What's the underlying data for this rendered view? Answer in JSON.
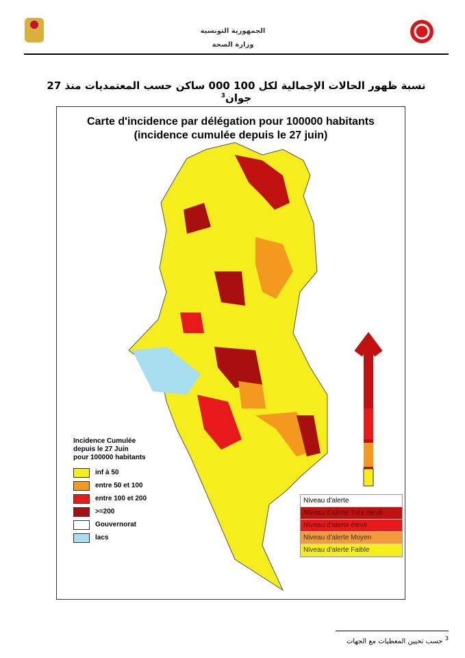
{
  "header": {
    "country": "الجمهورية التونسية",
    "ministry": "وزارة الصحة"
  },
  "title": {
    "text": "نسبة ظهور الحالات الإجمالية لكل 100 000 ساكن حسب المعتمديات منذ 27 جوان",
    "note": "3"
  },
  "map": {
    "title": [
      "Carte d'incidence par délégation pour 100000 habitants",
      "(incidence cumulée depuis le 27 juin)"
    ],
    "legend": {
      "title": [
        "Incidence Cumulée",
        "depuis le 27 Juin",
        "pour 100000 habitants"
      ],
      "items": [
        {
          "label": "inf à 50",
          "color": "#f5ee1c"
        },
        {
          "label": "entre 50 et 100",
          "color": "#f39a1e"
        },
        {
          "label": "entre 100 et 200",
          "color": "#e8191b"
        },
        {
          "label": ">=200",
          "color": "#a8100f"
        },
        {
          "label": "Gouvernorat",
          "color": "#ffffff"
        },
        {
          "label": "lacs",
          "color": "#a8dcef"
        }
      ]
    },
    "alert_scale": {
      "title": "Niveau d'alerte",
      "levels": [
        {
          "label": "Niveau d'alerte Très élevé",
          "color": "#c0100f"
        },
        {
          "label": "Niveau d'alerte élevé",
          "color": "#e8191b"
        },
        {
          "label": "Niveau d'alerte Moyen",
          "color": "#f39a3a"
        },
        {
          "label": "Niveau d'alerte Faible",
          "color": "#f5ee1c"
        }
      ]
    }
  },
  "footnote": {
    "note": "3",
    "text": "حسب تحيين المعطيات مع الجهات"
  }
}
